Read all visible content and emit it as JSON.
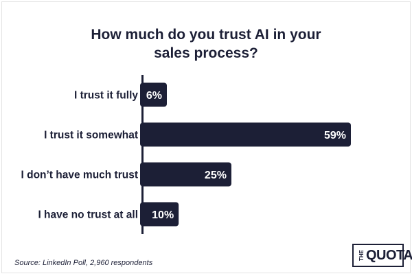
{
  "chart_data": {
    "type": "bar",
    "orientation": "horizontal",
    "title_lines": [
      "How much do you trust AI in your",
      "sales process?"
    ],
    "categories": [
      "I trust it fully",
      "I trust it somewhat",
      "I don’t have much trust",
      "I have no trust at all"
    ],
    "values": [
      6,
      59,
      25,
      10
    ],
    "value_labels": [
      "6%",
      "59%",
      "25%",
      "10%"
    ],
    "xlim": [
      0,
      59
    ],
    "grid": false,
    "legend": "none",
    "colors": {
      "bar": "#1c1f36",
      "axis": "#1c1f36",
      "text": "#1c1f36",
      "value_text": "#ffffff"
    }
  },
  "source": "Source: LinkedIn Poll, 2,960 respondents",
  "logo": {
    "the": "THE",
    "quota": "QUOTA"
  }
}
